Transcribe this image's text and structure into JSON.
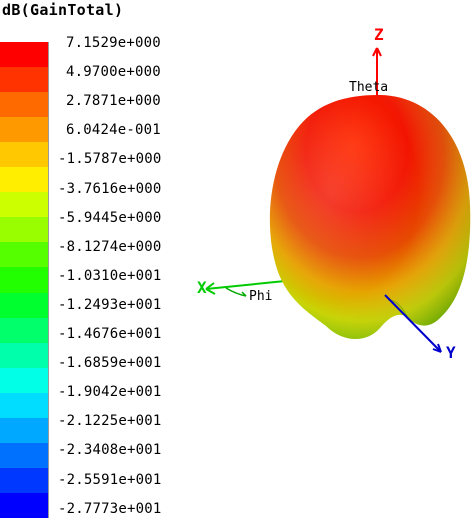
{
  "legend": {
    "title": "dB(GainTotal)",
    "colors": [
      "#ff0000",
      "#ff3300",
      "#ff6a00",
      "#ff9900",
      "#ffc800",
      "#ffee00",
      "#ccff00",
      "#99ff00",
      "#55ff00",
      "#22ff00",
      "#00ff2e",
      "#00ff6a",
      "#00ffaa",
      "#00ffe6",
      "#00ddff",
      "#00a8ff",
      "#0070ff",
      "#0038ff",
      "#0000ff"
    ],
    "labels": [
      "7.1529e+000",
      "4.9700e+000",
      "2.7871e+000",
      "6.0424e-001",
      "-1.5787e+000",
      "-3.7616e+000",
      "-5.9445e+000",
      "-8.1274e+000",
      "-1.0310e+001",
      "-1.2493e+001",
      "-1.4676e+001",
      "-1.6859e+001",
      "-1.9042e+001",
      "-2.1225e+001",
      "-2.3408e+001",
      "-2.5591e+001",
      "-2.7773e+001"
    ]
  },
  "plot": {
    "axis_z_label": "Z",
    "axis_y_label": "Y",
    "axis_x_label": "X",
    "theta_label": "Theta",
    "phi_label": "Phi",
    "axis_z_color": "#ff0000",
    "axis_y_color": "#0000cc",
    "axis_x_color": "#00cc00"
  }
}
